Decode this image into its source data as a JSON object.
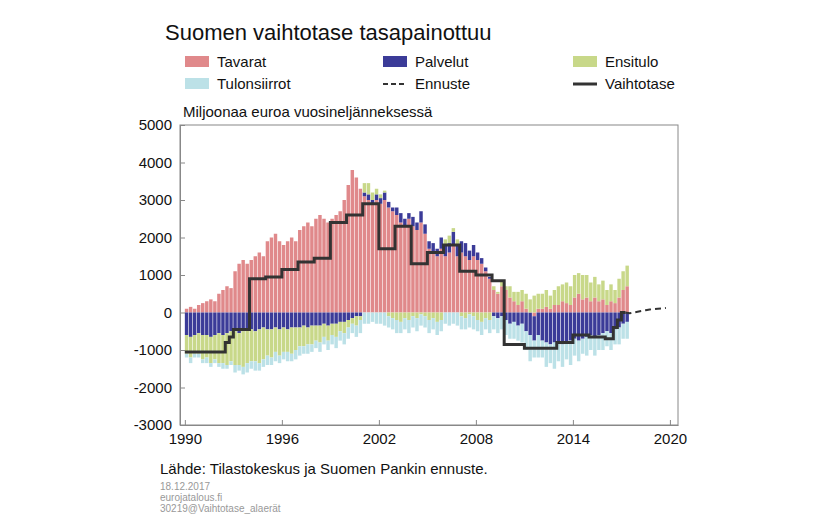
{
  "chart_data": {
    "type": "bar",
    "title": "Suomen vaihtotase tasapainottuu",
    "subtitle": "Miljoonaa euroa vuosineljänneksessä",
    "source": "Lähde: Tilastokeskus ja Suomen Pankin ennuste.",
    "notes": [
      "18.12.2017",
      "eurojatalous.fi",
      "30219@Vaihtotase_alaerät"
    ],
    "stacked": true,
    "grid": false,
    "legend": "top",
    "xlim": [
      1989.7,
      2020.5
    ],
    "xticks": [
      1990,
      1996,
      2002,
      2008,
      2014,
      2020
    ],
    "ylim": [
      -3000,
      5000
    ],
    "yticks": [
      -3000,
      -2000,
      -1000,
      0,
      1000,
      2000,
      3000,
      4000,
      5000
    ],
    "x": [
      1990,
      1990.25,
      1990.5,
      1990.75,
      1991,
      1991.25,
      1991.5,
      1991.75,
      1992,
      1992.25,
      1992.5,
      1992.75,
      1993,
      1993.25,
      1993.5,
      1993.75,
      1994,
      1994.25,
      1994.5,
      1994.75,
      1995,
      1995.25,
      1995.5,
      1995.75,
      1996,
      1996.25,
      1996.5,
      1996.75,
      1997,
      1997.25,
      1997.5,
      1997.75,
      1998,
      1998.25,
      1998.5,
      1998.75,
      1999,
      1999.25,
      1999.5,
      1999.75,
      2000,
      2000.25,
      2000.5,
      2000.75,
      2001,
      2001.25,
      2001.5,
      2001.75,
      2002,
      2002.25,
      2002.5,
      2002.75,
      2003,
      2003.25,
      2003.5,
      2003.75,
      2004,
      2004.25,
      2004.5,
      2004.75,
      2005,
      2005.25,
      2005.5,
      2005.75,
      2006,
      2006.25,
      2006.5,
      2006.75,
      2007,
      2007.25,
      2007.5,
      2007.75,
      2008,
      2008.25,
      2008.5,
      2008.75,
      2009,
      2009.25,
      2009.5,
      2009.75,
      2010,
      2010.25,
      2010.5,
      2010.75,
      2011,
      2011.25,
      2011.5,
      2011.75,
      2012,
      2012.25,
      2012.5,
      2012.75,
      2013,
      2013.25,
      2013.5,
      2013.75,
      2014,
      2014.25,
      2014.5,
      2014.75,
      2015,
      2015.25,
      2015.5,
      2015.75,
      2016,
      2016.25,
      2016.5,
      2016.75,
      2017,
      2017.25,
      2017.5,
      2017.75,
      2018,
      2018.25,
      2018.5,
      2018.75,
      2019,
      2019.25,
      2019.5,
      2019.75
    ],
    "series": [
      {
        "name": "Tavarat",
        "type": "bar",
        "color": "#e0898b",
        "values": [
          100,
          150,
          100,
          200,
          250,
          300,
          350,
          300,
          500,
          600,
          700,
          650,
          1100,
          1300,
          1400,
          1300,
          1400,
          1500,
          1600,
          1500,
          1900,
          2000,
          2100,
          1900,
          1800,
          1900,
          2000,
          1900,
          2200,
          2300,
          2400,
          2300,
          2500,
          2600,
          2500,
          2400,
          2500,
          2600,
          2700,
          3000,
          3400,
          3800,
          3600,
          3300,
          3100,
          3000,
          2900,
          3000,
          2900,
          3000,
          2800,
          2700,
          2600,
          2400,
          2300,
          2500,
          2300,
          2200,
          2400,
          2100,
          1700,
          1600,
          1500,
          1700,
          1500,
          1600,
          1800,
          1500,
          1600,
          1500,
          1400,
          1500,
          1400,
          1300,
          1100,
          900,
          600,
          500,
          700,
          600,
          400,
          300,
          200,
          300,
          100,
          0,
          -100,
          100,
          100,
          150,
          100,
          200,
          200,
          300,
          250,
          200,
          400,
          500,
          350,
          400,
          300,
          400,
          300,
          350,
          200,
          300,
          250,
          400,
          600,
          700,
          null,
          null,
          null,
          null,
          null,
          null,
          null,
          null,
          null,
          null
        ]
      },
      {
        "name": "Palvelut",
        "type": "bar",
        "color": "#3b3b98",
        "values": [
          -600,
          -650,
          -600,
          -550,
          -600,
          -600,
          -650,
          -600,
          -550,
          -600,
          -550,
          -500,
          -500,
          -550,
          -500,
          -450,
          -450,
          -500,
          -450,
          -400,
          -450,
          -450,
          -400,
          -450,
          -400,
          -450,
          -400,
          -400,
          -400,
          -350,
          -400,
          -350,
          -350,
          -350,
          -300,
          -350,
          -300,
          -300,
          -250,
          -250,
          -200,
          -150,
          -100,
          -100,
          100,
          150,
          100,
          150,
          150,
          200,
          150,
          100,
          200,
          250,
          200,
          150,
          250,
          200,
          300,
          250,
          200,
          250,
          200,
          300,
          300,
          250,
          350,
          300,
          300,
          350,
          250,
          300,
          200,
          150,
          100,
          50,
          -100,
          -150,
          -100,
          -200,
          -300,
          -250,
          -350,
          -300,
          -500,
          -600,
          -650,
          -600,
          -750,
          -800,
          -850,
          -800,
          -800,
          -850,
          -800,
          -750,
          -700,
          -750,
          -700,
          -650,
          -600,
          -650,
          -600,
          -550,
          -500,
          -550,
          -450,
          -400,
          -300,
          -250,
          null,
          null,
          null,
          null,
          null,
          null,
          null,
          null,
          null,
          null
        ]
      },
      {
        "name": "Ensitulo",
        "type": "bar",
        "color": "#c8d889",
        "values": [
          -500,
          -550,
          -500,
          -550,
          -650,
          -600,
          -700,
          -650,
          -800,
          -750,
          -850,
          -800,
          -900,
          -850,
          -950,
          -900,
          -850,
          -800,
          -900,
          -850,
          -700,
          -750,
          -650,
          -700,
          -650,
          -600,
          -700,
          -600,
          -500,
          -550,
          -450,
          -500,
          -400,
          -450,
          -350,
          -400,
          -300,
          -350,
          -250,
          -300,
          -200,
          -150,
          -250,
          -100,
          250,
          300,
          200,
          150,
          100,
          50,
          -100,
          -150,
          -200,
          -250,
          -150,
          -200,
          -100,
          -150,
          -50,
          -100,
          -200,
          -150,
          -250,
          -200,
          150,
          200,
          100,
          150,
          -100,
          -150,
          -50,
          -100,
          -200,
          -250,
          -150,
          -200,
          100,
          50,
          150,
          100,
          300,
          250,
          350,
          300,
          400,
          350,
          450,
          400,
          400,
          450,
          350,
          400,
          500,
          450,
          550,
          500,
          600,
          550,
          650,
          600,
          500,
          550,
          450,
          500,
          400,
          450,
          350,
          500,
          500,
          550,
          null,
          null,
          null,
          null,
          null,
          null,
          null,
          null,
          null,
          null
        ]
      },
      {
        "name": "Tulonsiirrot",
        "type": "bar",
        "color": "#bce1e7",
        "values": [
          -100,
          -150,
          -100,
          -100,
          -100,
          -150,
          -100,
          -100,
          -100,
          -150,
          -100,
          -100,
          -200,
          -150,
          -200,
          -250,
          -200,
          -250,
          -200,
          -200,
          -250,
          -200,
          -250,
          -200,
          -200,
          -250,
          -200,
          -250,
          -250,
          -200,
          -250,
          -200,
          -200,
          -250,
          -200,
          -250,
          -250,
          -300,
          -250,
          -300,
          -300,
          -250,
          -300,
          -350,
          -300,
          -300,
          -250,
          -300,
          -300,
          -350,
          -300,
          -300,
          -350,
          -300,
          -300,
          -350,
          -300,
          -350,
          -300,
          -300,
          -350,
          -300,
          -350,
          -300,
          -300,
          -350,
          -300,
          -350,
          -350,
          -300,
          -350,
          -350,
          -300,
          -350,
          -300,
          -350,
          -350,
          -400,
          -350,
          -400,
          -400,
          -450,
          -400,
          -500,
          -500,
          -700,
          -450,
          -600,
          -450,
          -650,
          -500,
          -700,
          -500,
          -600,
          -450,
          -650,
          -450,
          -550,
          -400,
          -500,
          -400,
          -500,
          -400,
          -450,
          -400,
          -450,
          -400,
          -450,
          -400,
          -450,
          null,
          null,
          null,
          null,
          null,
          null,
          null,
          null,
          null,
          null
        ]
      },
      {
        "name": "Ennuste",
        "type": "line",
        "color": "#333333",
        "line_style": "dashed",
        "values": [
          null,
          null,
          null,
          null,
          null,
          null,
          null,
          null,
          null,
          null,
          null,
          null,
          null,
          null,
          null,
          null,
          null,
          null,
          null,
          null,
          null,
          null,
          null,
          null,
          null,
          null,
          null,
          null,
          null,
          null,
          null,
          null,
          null,
          null,
          null,
          null,
          null,
          null,
          null,
          null,
          null,
          null,
          null,
          null,
          null,
          null,
          null,
          null,
          null,
          null,
          null,
          null,
          null,
          null,
          null,
          null,
          null,
          null,
          null,
          null,
          null,
          null,
          null,
          null,
          null,
          null,
          null,
          null,
          null,
          null,
          null,
          null,
          null,
          null,
          null,
          null,
          null,
          null,
          null,
          null,
          null,
          null,
          null,
          null,
          null,
          null,
          null,
          null,
          null,
          null,
          null,
          null,
          null,
          null,
          null,
          null,
          null,
          null,
          null,
          null,
          null,
          null,
          null,
          null,
          null,
          null,
          null,
          null,
          null,
          0,
          -20,
          0,
          20,
          40,
          60,
          80,
          90,
          100,
          110,
          120
        ]
      },
      {
        "name": "Vaihtotase",
        "type": "line",
        "color": "#333333",
        "line_style": "step",
        "values": [
          -1050,
          -1050,
          -1050,
          -1050,
          -1050,
          -1050,
          -1050,
          -1050,
          -1050,
          -1050,
          -800,
          -650,
          -450,
          -450,
          -450,
          -450,
          900,
          900,
          900,
          900,
          950,
          950,
          950,
          950,
          1150,
          1150,
          1150,
          1150,
          1350,
          1350,
          1350,
          1350,
          1450,
          1450,
          1450,
          1450,
          2400,
          2400,
          2400,
          2400,
          2600,
          2600,
          2600,
          2600,
          2900,
          2900,
          2900,
          2900,
          1700,
          1700,
          1700,
          1700,
          2300,
          2300,
          2300,
          2300,
          1300,
          1300,
          1300,
          1300,
          1600,
          1600,
          1600,
          1600,
          1800,
          1800,
          1800,
          1800,
          1100,
          1100,
          1100,
          1100,
          1000,
          1000,
          1000,
          1000,
          850,
          850,
          850,
          -850,
          -850,
          -850,
          -850,
          -850,
          -950,
          -950,
          -950,
          -950,
          -950,
          -950,
          -950,
          -950,
          -800,
          -800,
          -800,
          -800,
          -600,
          -600,
          -600,
          -600,
          -650,
          -650,
          -650,
          -650,
          -700,
          -700,
          -400,
          -200,
          0,
          0,
          null,
          null,
          null,
          null,
          null,
          null,
          null,
          null,
          null,
          null
        ]
      }
    ]
  }
}
